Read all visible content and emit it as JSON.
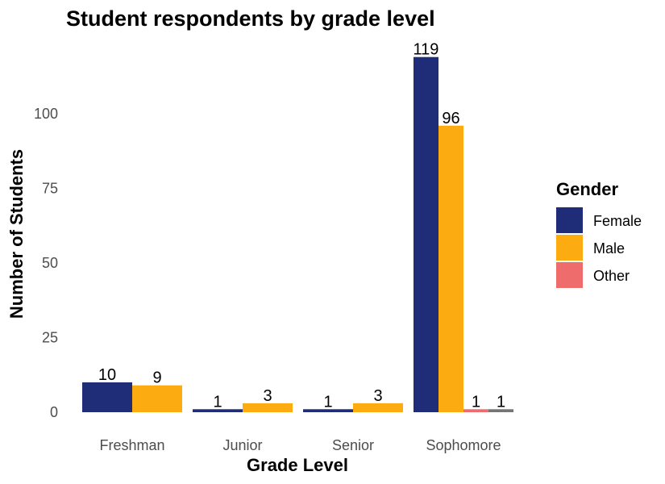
{
  "chart_data": {
    "type": "bar",
    "title": "Student respondents by grade level",
    "xlabel": "Grade Level",
    "ylabel": "Number of Students",
    "categories": [
      "Freshman",
      "Junior",
      "Senior",
      "Sophomore"
    ],
    "series": [
      {
        "name": "Female",
        "values": [
          10,
          1,
          1,
          119
        ],
        "color": "#1f2d78"
      },
      {
        "name": "Male",
        "values": [
          9,
          3,
          3,
          96
        ],
        "color": "#fcab10"
      },
      {
        "name": "Other",
        "values": [
          null,
          null,
          null,
          1
        ],
        "color": "#ee6c6c"
      },
      {
        "values": [
          null,
          null,
          null,
          1
        ],
        "color": "#757575"
      }
    ],
    "ylim": [
      0,
      119
    ],
    "yticks": [
      0,
      25,
      50,
      75,
      100
    ],
    "grid": false,
    "legend_title": "Gender",
    "legend_position": "right"
  }
}
